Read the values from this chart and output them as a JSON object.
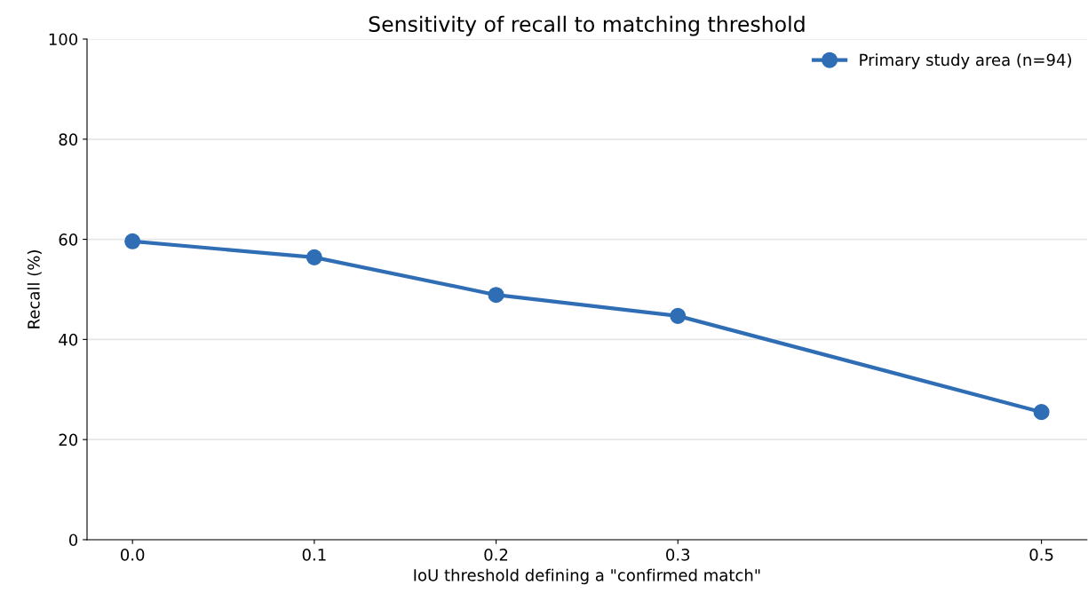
{
  "chart_data": {
    "type": "line",
    "title": "Sensitivity of recall to matching threshold",
    "xlabel": "IoU threshold defining a \"confirmed match\"",
    "ylabel": "Recall (%)",
    "x": [
      0.0,
      0.1,
      0.2,
      0.3,
      0.5
    ],
    "series": [
      {
        "name": "Primary study area (n=94)",
        "color": "#2f6db5",
        "values": [
          59.6,
          56.4,
          48.9,
          44.7,
          25.5
        ]
      }
    ],
    "xlim": [
      -0.025,
      0.525
    ],
    "xticks": [
      {
        "value": 0.0,
        "label": "0.0"
      },
      {
        "value": 0.1,
        "label": "0.1"
      },
      {
        "value": 0.2,
        "label": "0.2"
      },
      {
        "value": 0.3,
        "label": "0.3"
      },
      {
        "value": 0.5,
        "label": "0.5"
      }
    ],
    "ylim": [
      0,
      100
    ],
    "yticks": [
      0,
      20,
      40,
      60,
      80,
      100
    ],
    "grid": "y",
    "legend": "top right",
    "marker": "circle",
    "line_style": "solid"
  }
}
